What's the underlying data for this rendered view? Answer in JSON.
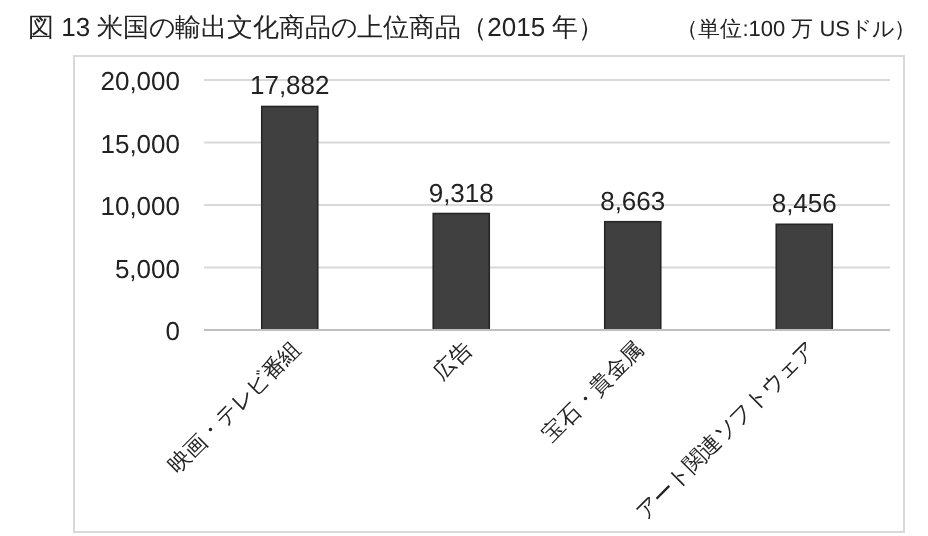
{
  "chart_data": {
    "type": "bar",
    "title": "図 13  米国の輸出文化商品の上位商品（2015 年）",
    "annotations": [
      "（単位:100 万 USドル）"
    ],
    "categories": [
      "映画・テレビ番組",
      "広告",
      "宝石・貴金属",
      "アート関連ソフトウェア"
    ],
    "values": [
      17882,
      9318,
      8663,
      8456
    ],
    "color": "#404040",
    "ylim": [
      0,
      20000
    ],
    "yticks": [
      {
        "value": 0,
        "label": "0"
      },
      {
        "value": 5000,
        "label": "5,000"
      },
      {
        "value": 10000,
        "label": "10,000"
      },
      {
        "value": 15000,
        "label": "15,000"
      },
      {
        "value": 20000,
        "label": "20,000"
      }
    ],
    "value_labels": [
      "17,882",
      "9,318",
      "8,663",
      "8,456"
    ],
    "grid": "y"
  }
}
